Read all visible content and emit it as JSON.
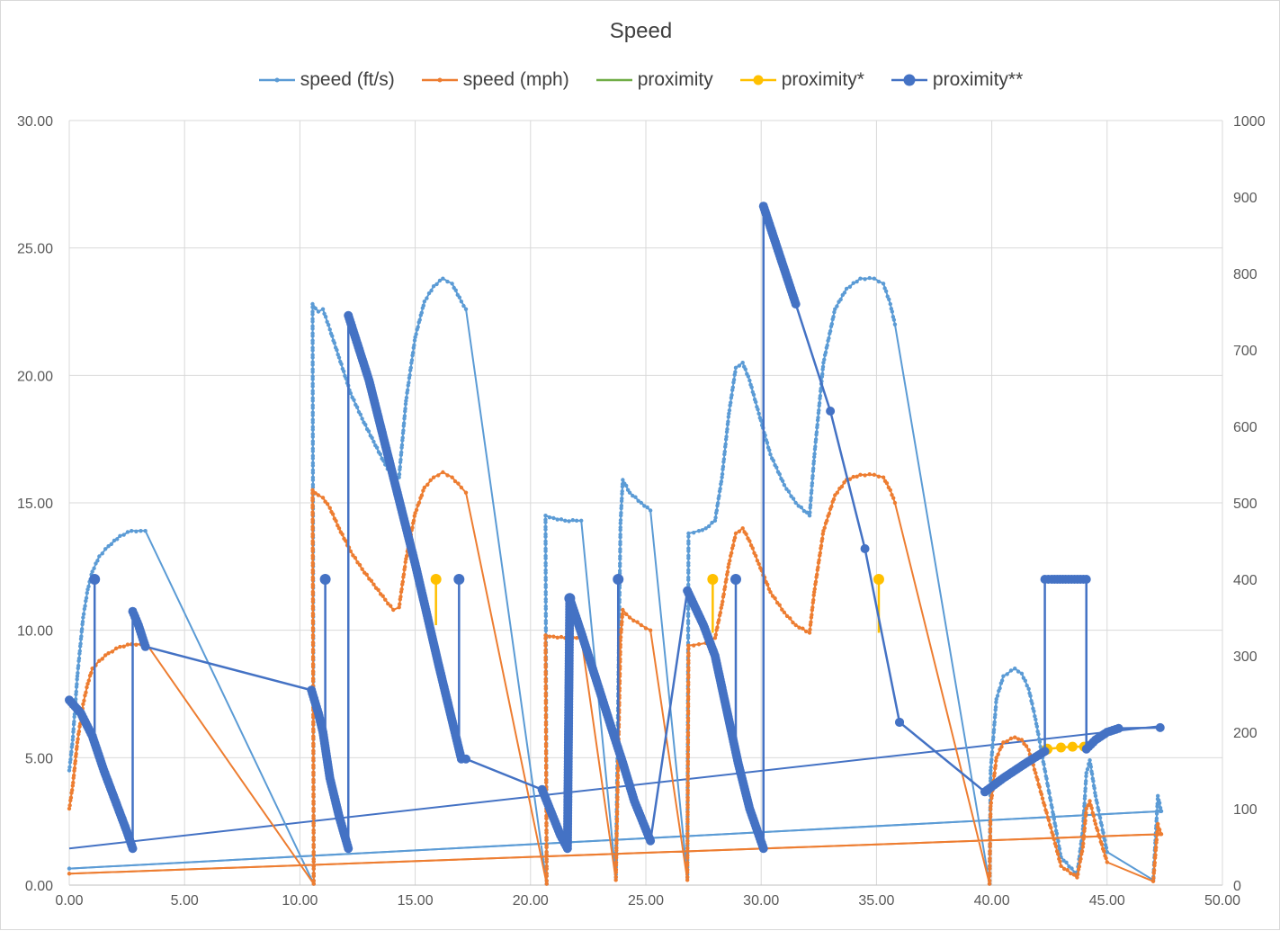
{
  "chart_data": {
    "type": "scatter",
    "title": "Speed",
    "xlabel": "",
    "ylabel": "",
    "y2label": "",
    "xlim": [
      0,
      50
    ],
    "ylim": [
      0,
      30
    ],
    "y2lim": [
      0,
      1000
    ],
    "x_ticks": [
      "0.00",
      "5.00",
      "10.00",
      "15.00",
      "20.00",
      "25.00",
      "30.00",
      "35.00",
      "40.00",
      "45.00",
      "50.00"
    ],
    "y_ticks": [
      "0.00",
      "5.00",
      "10.00",
      "15.00",
      "20.00",
      "25.00",
      "30.00"
    ],
    "y2_ticks": [
      "0",
      "100",
      "200",
      "300",
      "400",
      "500",
      "600",
      "700",
      "800",
      "900",
      "1000"
    ],
    "grid": true,
    "legend_position": "top",
    "series": [
      {
        "name": "speed (ft/s)",
        "color": "#5B9BD5",
        "axis": "left",
        "marker_size": 2.2,
        "line_width": 2,
        "points": [
          [
            0,
            4.5
          ],
          [
            0.15,
            5.7
          ],
          [
            0.35,
            8.2
          ],
          [
            0.6,
            10.5
          ],
          [
            0.8,
            11.6
          ],
          [
            1.0,
            12.3
          ],
          [
            1.3,
            12.9
          ],
          [
            1.7,
            13.3
          ],
          [
            2.2,
            13.7
          ],
          [
            2.7,
            13.9
          ],
          [
            3.1,
            13.9
          ],
          [
            3.3,
            13.9
          ],
          [
            10.6,
            0.05
          ],
          [
            10.55,
            22.8
          ],
          [
            10.8,
            22.5
          ],
          [
            11.0,
            22.6
          ],
          [
            11.3,
            21.8
          ],
          [
            11.7,
            20.7
          ],
          [
            12.2,
            19.3
          ],
          [
            12.7,
            18.3
          ],
          [
            13.2,
            17.4
          ],
          [
            13.7,
            16.5
          ],
          [
            14.1,
            15.9
          ],
          [
            14.3,
            16.0
          ],
          [
            14.6,
            19.0
          ],
          [
            15.0,
            21.5
          ],
          [
            15.4,
            22.9
          ],
          [
            15.8,
            23.5
          ],
          [
            16.2,
            23.8
          ],
          [
            16.6,
            23.6
          ],
          [
            17.0,
            22.9
          ],
          [
            17.2,
            22.6
          ],
          [
            20.7,
            0.05
          ],
          [
            20.65,
            14.5
          ],
          [
            21.0,
            14.4
          ],
          [
            21.5,
            14.3
          ],
          [
            22.0,
            14.3
          ],
          [
            22.2,
            14.3
          ],
          [
            23.7,
            0.3
          ],
          [
            23.9,
            14.2
          ],
          [
            24.0,
            15.9
          ],
          [
            24.3,
            15.4
          ],
          [
            24.8,
            15.0
          ],
          [
            25.2,
            14.7
          ],
          [
            26.8,
            0.3
          ],
          [
            26.85,
            13.8
          ],
          [
            27.3,
            13.9
          ],
          [
            27.6,
            14.0
          ],
          [
            28.0,
            14.3
          ],
          [
            28.3,
            16.0
          ],
          [
            28.6,
            18.5
          ],
          [
            28.9,
            20.3
          ],
          [
            29.2,
            20.5
          ],
          [
            29.5,
            19.8
          ],
          [
            29.9,
            18.5
          ],
          [
            30.4,
            16.9
          ],
          [
            31.0,
            15.7
          ],
          [
            31.5,
            15.0
          ],
          [
            32.1,
            14.5
          ],
          [
            32.3,
            16.8
          ],
          [
            32.7,
            20.5
          ],
          [
            33.2,
            22.6
          ],
          [
            33.7,
            23.4
          ],
          [
            34.3,
            23.8
          ],
          [
            34.9,
            23.8
          ],
          [
            35.3,
            23.6
          ],
          [
            35.6,
            22.8
          ],
          [
            35.8,
            22.0
          ],
          [
            39.9,
            0.05
          ],
          [
            39.95,
            4.5
          ],
          [
            40.2,
            7.3
          ],
          [
            40.5,
            8.2
          ],
          [
            41.0,
            8.5
          ],
          [
            41.3,
            8.3
          ],
          [
            41.6,
            7.7
          ],
          [
            41.9,
            6.5
          ],
          [
            42.2,
            5.0
          ],
          [
            42.7,
            2.6
          ],
          [
            43.0,
            1.1
          ],
          [
            43.7,
            0.4
          ],
          [
            43.95,
            2.2
          ],
          [
            44.1,
            4.4
          ],
          [
            44.25,
            4.9
          ],
          [
            44.5,
            3.5
          ],
          [
            45.0,
            1.3
          ],
          [
            47.0,
            0.2
          ],
          [
            47.2,
            3.5
          ],
          [
            47.35,
            2.9
          ],
          [
            0,
            0.65
          ],
          [
            47.3,
            2.9
          ]
        ]
      },
      {
        "name": "speed (mph)",
        "color": "#ED7D31",
        "axis": "left",
        "marker_size": 2.2,
        "line_width": 2,
        "points": [
          [
            0,
            3.0
          ],
          [
            0.15,
            3.9
          ],
          [
            0.35,
            5.6
          ],
          [
            0.6,
            7.1
          ],
          [
            0.8,
            7.9
          ],
          [
            1.0,
            8.5
          ],
          [
            1.3,
            8.8
          ],
          [
            1.7,
            9.1
          ],
          [
            2.2,
            9.35
          ],
          [
            2.7,
            9.45
          ],
          [
            3.1,
            9.45
          ],
          [
            3.4,
            9.4
          ],
          [
            10.6,
            0.05
          ],
          [
            10.55,
            15.5
          ],
          [
            10.8,
            15.3
          ],
          [
            11.0,
            15.2
          ],
          [
            11.3,
            14.8
          ],
          [
            11.7,
            14.0
          ],
          [
            12.2,
            13.1
          ],
          [
            12.7,
            12.4
          ],
          [
            13.2,
            11.8
          ],
          [
            13.7,
            11.2
          ],
          [
            14.05,
            10.8
          ],
          [
            14.3,
            10.9
          ],
          [
            14.6,
            12.8
          ],
          [
            15.0,
            14.6
          ],
          [
            15.4,
            15.6
          ],
          [
            15.8,
            16.0
          ],
          [
            16.2,
            16.2
          ],
          [
            16.6,
            16.0
          ],
          [
            17.0,
            15.6
          ],
          [
            17.2,
            15.4
          ],
          [
            20.7,
            0.05
          ],
          [
            20.65,
            9.8
          ],
          [
            21.0,
            9.75
          ],
          [
            21.5,
            9.7
          ],
          [
            22.0,
            9.7
          ],
          [
            22.2,
            9.7
          ],
          [
            23.7,
            0.2
          ],
          [
            23.9,
            9.6
          ],
          [
            24.0,
            10.8
          ],
          [
            24.3,
            10.5
          ],
          [
            24.8,
            10.2
          ],
          [
            25.2,
            10.0
          ],
          [
            26.8,
            0.2
          ],
          [
            26.85,
            9.4
          ],
          [
            27.3,
            9.45
          ],
          [
            27.6,
            9.5
          ],
          [
            28.0,
            9.7
          ],
          [
            28.3,
            11.0
          ],
          [
            28.6,
            12.6
          ],
          [
            28.9,
            13.8
          ],
          [
            29.2,
            14.0
          ],
          [
            29.5,
            13.5
          ],
          [
            29.9,
            12.6
          ],
          [
            30.4,
            11.5
          ],
          [
            31.0,
            10.7
          ],
          [
            31.5,
            10.2
          ],
          [
            32.1,
            9.9
          ],
          [
            32.3,
            11.5
          ],
          [
            32.7,
            13.9
          ],
          [
            33.2,
            15.3
          ],
          [
            33.7,
            15.9
          ],
          [
            34.3,
            16.1
          ],
          [
            34.9,
            16.1
          ],
          [
            35.3,
            16.0
          ],
          [
            35.6,
            15.5
          ],
          [
            35.8,
            15.0
          ],
          [
            39.9,
            0.05
          ],
          [
            39.95,
            3.1
          ],
          [
            40.2,
            5.0
          ],
          [
            40.5,
            5.6
          ],
          [
            41.0,
            5.8
          ],
          [
            41.3,
            5.7
          ],
          [
            41.6,
            5.3
          ],
          [
            41.9,
            4.4
          ],
          [
            42.2,
            3.4
          ],
          [
            42.7,
            1.8
          ],
          [
            43.0,
            0.75
          ],
          [
            43.7,
            0.3
          ],
          [
            43.95,
            1.5
          ],
          [
            44.1,
            3.0
          ],
          [
            44.25,
            3.3
          ],
          [
            44.5,
            2.4
          ],
          [
            45.0,
            0.9
          ],
          [
            47.0,
            0.15
          ],
          [
            47.2,
            2.4
          ],
          [
            47.35,
            2.0
          ],
          [
            0,
            0.45
          ],
          [
            47.3,
            2.0
          ]
        ]
      },
      {
        "name": "proximity",
        "color": "#70AD47",
        "axis": "right",
        "marker_size": 0,
        "line_width": 2,
        "points": []
      },
      {
        "name": "proximity*",
        "color": "#FFC000",
        "axis": "right",
        "marker_size": 0,
        "line_width": 2.5,
        "points": [
          [
            15.9,
            400
          ],
          [
            15.9,
            340
          ],
          [
            null,
            null
          ],
          [
            27.9,
            400
          ],
          [
            27.9,
            330
          ],
          [
            null,
            null
          ],
          [
            35.1,
            400
          ],
          [
            35.1,
            330
          ],
          [
            null,
            null
          ],
          [
            42.4,
            178
          ],
          [
            43.0,
            180
          ],
          [
            43.5,
            181
          ],
          [
            44.0,
            181
          ]
        ]
      },
      {
        "name": "proximity**",
        "color": "#4472C4",
        "axis": "right",
        "marker_size": 5,
        "line_width": 2.5,
        "points": [
          [
            0,
            242
          ],
          [
            0.5,
            225
          ],
          [
            1.0,
            195
          ],
          [
            1.5,
            150
          ],
          [
            2.0,
            110
          ],
          [
            2.5,
            70
          ],
          [
            2.75,
            48
          ],
          [
            2.75,
            358
          ],
          [
            3.0,
            340
          ],
          [
            3.3,
            312
          ],
          [
            10.5,
            255
          ],
          [
            10.8,
            225
          ],
          [
            11.0,
            200
          ],
          [
            11.3,
            140
          ],
          [
            11.7,
            90
          ],
          [
            12.1,
            48
          ],
          [
            12.1,
            745
          ],
          [
            13.0,
            660
          ],
          [
            14.0,
            540
          ],
          [
            15.0,
            420
          ],
          [
            16.0,
            290
          ],
          [
            17.0,
            165
          ],
          [
            17.2,
            165
          ],
          [
            20.5,
            125
          ],
          [
            20.9,
            95
          ],
          [
            21.3,
            65
          ],
          [
            21.6,
            48
          ],
          [
            21.7,
            375
          ],
          [
            22.2,
            330
          ],
          [
            23.6,
            197
          ],
          [
            24.0,
            160
          ],
          [
            24.5,
            110
          ],
          [
            25.2,
            58
          ],
          [
            26.8,
            385
          ],
          [
            27.5,
            340
          ],
          [
            28.0,
            300
          ],
          [
            28.5,
            230
          ],
          [
            29.0,
            160
          ],
          [
            29.5,
            100
          ],
          [
            30.1,
            48
          ],
          [
            30.1,
            888
          ],
          [
            31.5,
            760
          ],
          [
            33.0,
            620
          ],
          [
            34.5,
            440
          ],
          [
            36.0,
            213
          ],
          [
            36.0,
            213
          ],
          [
            39.7,
            122
          ],
          [
            40.5,
            140
          ],
          [
            41.5,
            160
          ],
          [
            42.3,
            175
          ],
          [
            42.3,
            400
          ],
          [
            42.6,
            400
          ],
          [
            43.2,
            400
          ],
          [
            44.1,
            400
          ],
          [
            44.1,
            178
          ],
          [
            44.5,
            190
          ],
          [
            45.0,
            200
          ],
          [
            45.5,
            205
          ],
          [
            47.3,
            206
          ]
        ]
      }
    ],
    "connector_lines": [
      {
        "series": "proximity**",
        "points": [
          [
            0,
            48
          ],
          [
            47.3,
            208
          ]
        ]
      },
      {
        "series": "speed (ft/s)",
        "points": [
          [
            0,
            0.65
          ],
          [
            47.3,
            2.9
          ]
        ]
      },
      {
        "series": "speed (mph)",
        "points": [
          [
            0,
            0.45
          ],
          [
            47.3,
            2.0
          ]
        ]
      }
    ],
    "vertical_spikes": [
      {
        "series": "proximity**",
        "x": 1.1,
        "from": 190,
        "to": 400
      },
      {
        "series": "proximity**",
        "x": 11.1,
        "from": 195,
        "to": 400
      },
      {
        "series": "proximity**",
        "x": 16.9,
        "from": 170,
        "to": 400
      },
      {
        "series": "proximity**",
        "x": 21.7,
        "from": 80,
        "to": 375
      },
      {
        "series": "proximity**",
        "x": 23.8,
        "from": 180,
        "to": 400
      },
      {
        "series": "proximity**",
        "x": 28.9,
        "from": 175,
        "to": 400
      }
    ]
  }
}
